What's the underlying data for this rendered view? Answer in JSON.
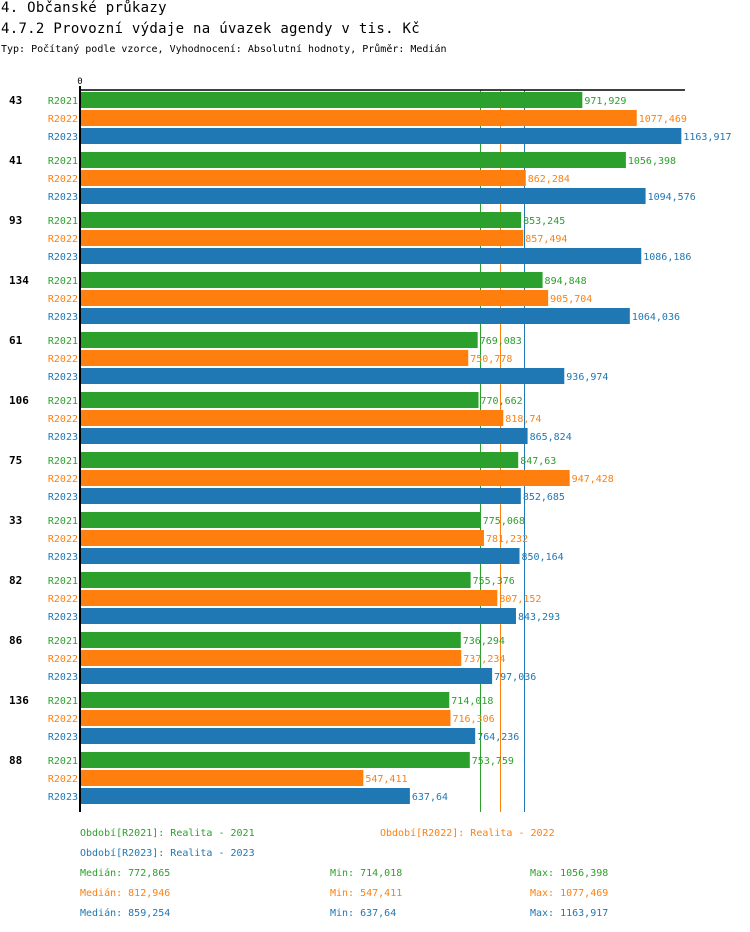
{
  "header": {
    "title": "4. Občanské průkazy",
    "subtitle": "4.7.2 Provozní výdaje na úvazek agendy v tis. Kč",
    "meta": "Typ: Počítaný podle vzorce, Vyhodnocení: Absolutní hodnoty, Průměr: Medián"
  },
  "colors": {
    "R2021": "#2ca02c",
    "R2022": "#ff7f0e",
    "R2023": "#1f77b4"
  },
  "chart_data": {
    "type": "bar",
    "orientation": "horizontal",
    "title": "4.7.2 Provozní výdaje na úvazek agendy v tis. Kč",
    "xlabel": "",
    "ylabel": "",
    "x_tick_labels": [
      "0"
    ],
    "xlim": [
      0,
      1171
    ],
    "grid": false,
    "categories": [
      "43",
      "41",
      "93",
      "134",
      "61",
      "106",
      "75",
      "33",
      "82",
      "86",
      "136",
      "88"
    ],
    "series": [
      {
        "name": "R2021",
        "values": [
          971.929,
          1056.398,
          853.245,
          894.848,
          769.083,
          770.662,
          847.63,
          775.068,
          755.376,
          736.294,
          714.018,
          753.759
        ],
        "labels": [
          "971,929",
          "1056,398",
          "853,245",
          "894,848",
          "769,083",
          "770,662",
          "847,63",
          "775,068",
          "755,376",
          "736,294",
          "714,018",
          "753,759"
        ]
      },
      {
        "name": "R2022",
        "values": [
          1077.469,
          862.284,
          857.494,
          905.704,
          750.778,
          818.74,
          947.428,
          781.232,
          807.152,
          737.234,
          716.306,
          547.411
        ],
        "labels": [
          "1077,469",
          "862,284",
          "857,494",
          "905,704",
          "750,778",
          "818,74",
          "947,428",
          "781,232",
          "807,152",
          "737,234",
          "716,306",
          "547,411"
        ]
      },
      {
        "name": "R2023",
        "values": [
          1163.917,
          1094.576,
          1086.186,
          1064.036,
          936.974,
          865.824,
          852.685,
          850.164,
          843.293,
          797.036,
          764.236,
          637.64
        ],
        "labels": [
          "1163,917",
          "1094,576",
          "1086,186",
          "1064,036",
          "936,974",
          "865,824",
          "852,685",
          "850,164",
          "843,293",
          "797,036",
          "764,236",
          "637,64"
        ]
      }
    ],
    "reference_lines": [
      {
        "series": "R2021",
        "label": "Medián",
        "value": 772.865
      },
      {
        "series": "R2022",
        "label": "Medián",
        "value": 812.946
      },
      {
        "series": "R2023",
        "label": "Medián",
        "value": 859.254
      }
    ],
    "legend_placement": "bottom"
  },
  "legend": {
    "periods": [
      {
        "series": "R2021",
        "text": "Období[R2021]: Realita - 2021"
      },
      {
        "series": "R2022",
        "text": "Období[R2022]: Realita - 2022"
      },
      {
        "series": "R2023",
        "text": "Období[R2023]: Realita - 2023"
      }
    ],
    "stats": [
      {
        "series": "R2021",
        "median": "Medián: 772,865",
        "min": "Min: 714,018",
        "max": "Max: 1056,398"
      },
      {
        "series": "R2022",
        "median": "Medián: 812,946",
        "min": "Min: 547,411",
        "max": "Max: 1077,469"
      },
      {
        "series": "R2023",
        "median": "Medián: 859,254",
        "min": "Min: 637,64",
        "max": "Max: 1163,917"
      }
    ]
  }
}
